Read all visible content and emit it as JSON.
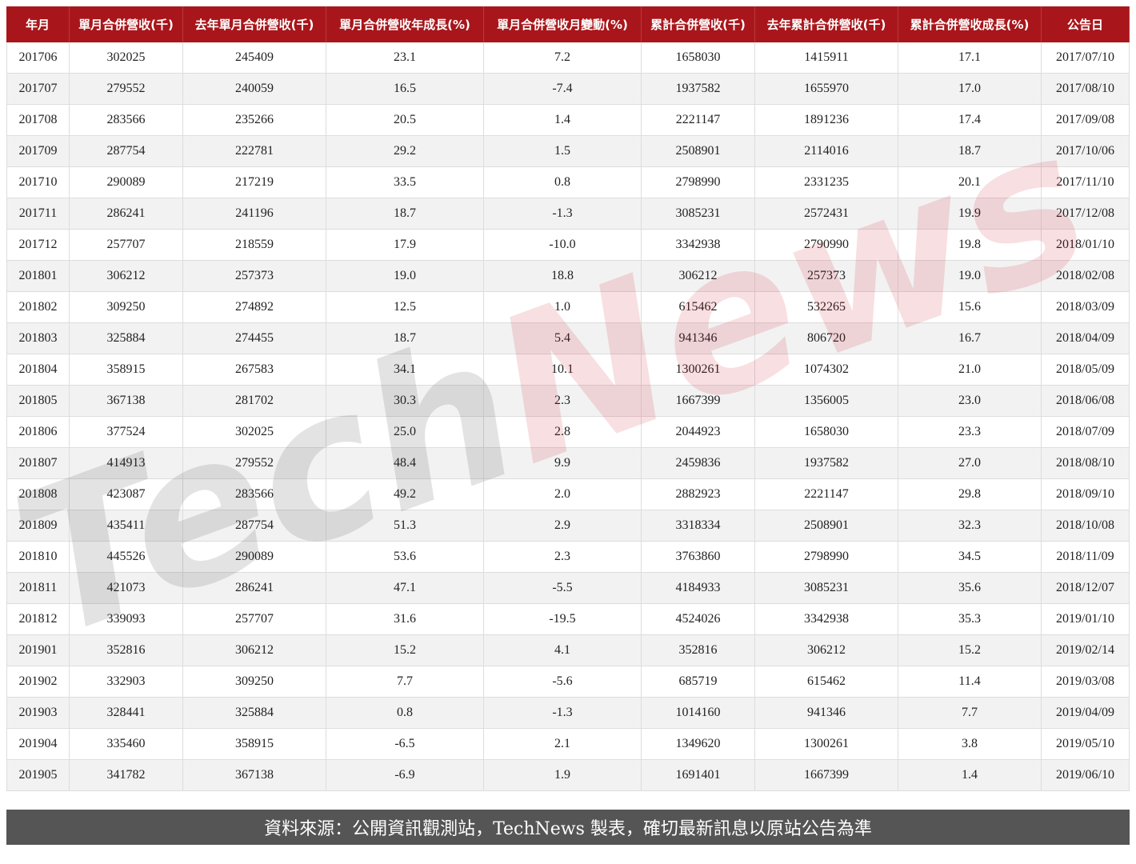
{
  "table": {
    "header": [
      "年月",
      "單月合併營收(千)",
      "去年單月合併營收(千)",
      "單月合併營收年成長(%)",
      "單月合併營收月變動(%)",
      "累計合併營收(千)",
      "去年累計合併營收(千)",
      "累計合併營收成長(%)",
      "公告日"
    ],
    "rows": [
      [
        "201706",
        "302025",
        "245409",
        "23.1",
        "7.2",
        "1658030",
        "1415911",
        "17.1",
        "2017/07/10"
      ],
      [
        "201707",
        "279552",
        "240059",
        "16.5",
        "-7.4",
        "1937582",
        "1655970",
        "17.0",
        "2017/08/10"
      ],
      [
        "201708",
        "283566",
        "235266",
        "20.5",
        "1.4",
        "2221147",
        "1891236",
        "17.4",
        "2017/09/08"
      ],
      [
        "201709",
        "287754",
        "222781",
        "29.2",
        "1.5",
        "2508901",
        "2114016",
        "18.7",
        "2017/10/06"
      ],
      [
        "201710",
        "290089",
        "217219",
        "33.5",
        "0.8",
        "2798990",
        "2331235",
        "20.1",
        "2017/11/10"
      ],
      [
        "201711",
        "286241",
        "241196",
        "18.7",
        "-1.3",
        "3085231",
        "2572431",
        "19.9",
        "2017/12/08"
      ],
      [
        "201712",
        "257707",
        "218559",
        "17.9",
        "-10.0",
        "3342938",
        "2790990",
        "19.8",
        "2018/01/10"
      ],
      [
        "201801",
        "306212",
        "257373",
        "19.0",
        "18.8",
        "306212",
        "257373",
        "19.0",
        "2018/02/08"
      ],
      [
        "201802",
        "309250",
        "274892",
        "12.5",
        "1.0",
        "615462",
        "532265",
        "15.6",
        "2018/03/09"
      ],
      [
        "201803",
        "325884",
        "274455",
        "18.7",
        "5.4",
        "941346",
        "806720",
        "16.7",
        "2018/04/09"
      ],
      [
        "201804",
        "358915",
        "267583",
        "34.1",
        "10.1",
        "1300261",
        "1074302",
        "21.0",
        "2018/05/09"
      ],
      [
        "201805",
        "367138",
        "281702",
        "30.3",
        "2.3",
        "1667399",
        "1356005",
        "23.0",
        "2018/06/08"
      ],
      [
        "201806",
        "377524",
        "302025",
        "25.0",
        "2.8",
        "2044923",
        "1658030",
        "23.3",
        "2018/07/09"
      ],
      [
        "201807",
        "414913",
        "279552",
        "48.4",
        "9.9",
        "2459836",
        "1937582",
        "27.0",
        "2018/08/10"
      ],
      [
        "201808",
        "423087",
        "283566",
        "49.2",
        "2.0",
        "2882923",
        "2221147",
        "29.8",
        "2018/09/10"
      ],
      [
        "201809",
        "435411",
        "287754",
        "51.3",
        "2.9",
        "3318334",
        "2508901",
        "32.3",
        "2018/10/08"
      ],
      [
        "201810",
        "445526",
        "290089",
        "53.6",
        "2.3",
        "3763860",
        "2798990",
        "34.5",
        "2018/11/09"
      ],
      [
        "201811",
        "421073",
        "286241",
        "47.1",
        "-5.5",
        "4184933",
        "3085231",
        "35.6",
        "2018/12/07"
      ],
      [
        "201812",
        "339093",
        "257707",
        "31.6",
        "-19.5",
        "4524026",
        "3342938",
        "35.3",
        "2019/01/10"
      ],
      [
        "201901",
        "352816",
        "306212",
        "15.2",
        "4.1",
        "352816",
        "306212",
        "15.2",
        "2019/02/14"
      ],
      [
        "201902",
        "332903",
        "309250",
        "7.7",
        "-5.6",
        "685719",
        "615462",
        "11.4",
        "2019/03/08"
      ],
      [
        "201903",
        "328441",
        "325884",
        "0.8",
        "-1.3",
        "1014160",
        "941346",
        "7.7",
        "2019/04/09"
      ],
      [
        "201904",
        "335460",
        "358915",
        "-6.5",
        "2.1",
        "1349620",
        "1300261",
        "3.8",
        "2019/05/10"
      ],
      [
        "201905",
        "341782",
        "367138",
        "-6.9",
        "1.9",
        "1691401",
        "1667399",
        "1.4",
        "2019/06/10"
      ]
    ]
  },
  "watermark": [
    "Tech",
    "News"
  ],
  "footer": "資料來源：公開資訊觀測站，TechNews 製表，確切最新訊息以原站公告為準"
}
